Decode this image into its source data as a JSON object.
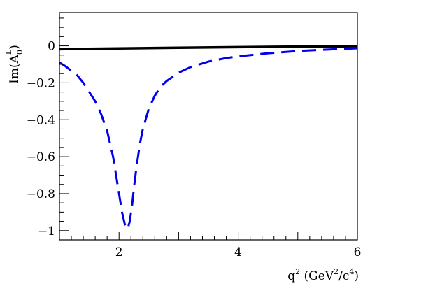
{
  "chart_data": {
    "type": "line",
    "title": "",
    "xlabel": {
      "q": "q",
      "q_exp": "2",
      "open": " (GeV",
      "gev_exp": "2",
      "slash_c": "/c",
      "c_exp": "4",
      "close": ")"
    },
    "ylabel": {
      "im": "Im(A",
      "sub": "0",
      "sup": "L",
      "close": ")"
    },
    "xlim": [
      1,
      6
    ],
    "ylim": [
      -1.05,
      0.18
    ],
    "x_ticks": [
      2,
      4,
      6
    ],
    "x_tick_labels": [
      "2",
      "4",
      "6"
    ],
    "y_ticks": [
      0,
      -0.2,
      -0.4,
      -0.6,
      -0.8,
      -1
    ],
    "y_tick_labels": [
      "0",
      "−0.2",
      "−0.4",
      "−0.6",
      "−0.8",
      "−1"
    ],
    "grid": false,
    "series": [
      {
        "style": "solid",
        "color": "#000000",
        "x": [
          1.0,
          2.0,
          3.0,
          4.0,
          5.0,
          6.0
        ],
        "y": [
          -0.018,
          -0.014,
          -0.01,
          -0.007,
          -0.004,
          -0.002
        ]
      },
      {
        "style": "dashed",
        "color": "#0000ee",
        "x": [
          1.0,
          1.1,
          1.2,
          1.3,
          1.4,
          1.5,
          1.6,
          1.7,
          1.8,
          1.9,
          1.95,
          2.0,
          2.05,
          2.1,
          2.13,
          2.15,
          2.18,
          2.22,
          2.26,
          2.3,
          2.35,
          2.4,
          2.5,
          2.6,
          2.7,
          2.8,
          3.0,
          3.2,
          3.5,
          3.8,
          4.0,
          4.5,
          5.0,
          5.5,
          6.0
        ],
        "y": [
          -0.09,
          -0.11,
          -0.135,
          -0.16,
          -0.2,
          -0.25,
          -0.3,
          -0.37,
          -0.46,
          -0.6,
          -0.7,
          -0.8,
          -0.9,
          -0.97,
          -0.99,
          -0.985,
          -0.95,
          -0.86,
          -0.74,
          -0.64,
          -0.53,
          -0.45,
          -0.34,
          -0.27,
          -0.22,
          -0.19,
          -0.145,
          -0.115,
          -0.085,
          -0.066,
          -0.057,
          -0.04,
          -0.028,
          -0.02,
          -0.013
        ]
      }
    ]
  }
}
